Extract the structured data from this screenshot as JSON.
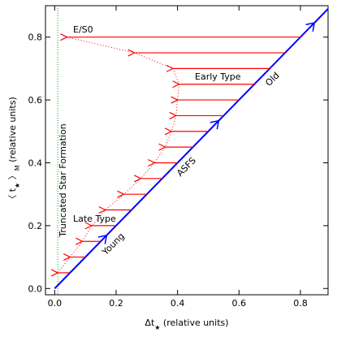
{
  "chart_data": {
    "type": "arrow-diagram",
    "xlabel": [
      "Δt",
      "★",
      " (relative units)"
    ],
    "ylabel": [
      "〈 t",
      "★",
      " 〉",
      "M",
      " (relative units)"
    ],
    "xlim": [
      -0.03,
      0.89
    ],
    "ylim": [
      -0.02,
      0.9
    ],
    "xticks": [
      {
        "value": 0,
        "label": "0.0"
      },
      0.2,
      0.4,
      0.6,
      0.8
    ],
    "yticks": [
      {
        "value": 0,
        "label": "0.0"
      },
      0.2,
      0.4,
      0.6,
      0.8
    ],
    "asfs_line": {
      "x": [
        0,
        0.89
      ],
      "y": [
        0,
        0.89
      ],
      "color": "#0000ff"
    },
    "arrows": {
      "color": "#ff0000",
      "y": [
        0.05,
        0.1,
        0.15,
        0.2,
        0.25,
        0.3,
        0.35,
        0.4,
        0.45,
        0.5,
        0.55,
        0.6,
        0.65,
        0.7,
        0.75,
        0.8
      ],
      "x_from": [
        0.05,
        0.1,
        0.15,
        0.2,
        0.25,
        0.3,
        0.35,
        0.4,
        0.45,
        0.5,
        0.55,
        0.6,
        0.65,
        0.7,
        0.75,
        0.8
      ],
      "x_to": [
        0.01,
        0.05,
        0.09,
        0.12,
        0.165,
        0.225,
        0.28,
        0.325,
        0.36,
        0.38,
        0.395,
        0.4,
        0.405,
        0.385,
        0.26,
        0.04
      ]
    },
    "truncation_line": {
      "x": 0.01,
      "color": "#00aa00"
    },
    "annotations": [
      "E/S0",
      "Early Type",
      "Late Type",
      "Old",
      "ASFS",
      "Young",
      "Truncated Star Formation"
    ]
  }
}
